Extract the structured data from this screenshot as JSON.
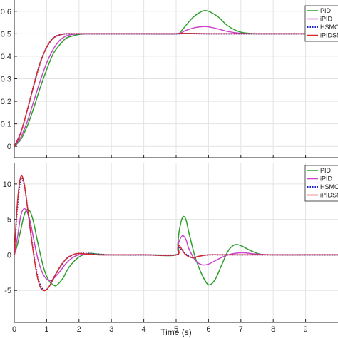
{
  "chart_data": [
    {
      "type": "line",
      "title": "",
      "xlabel": "",
      "ylabel": "",
      "xlim": [
        0,
        10
      ],
      "ylim": [
        -0.05,
        0.65
      ],
      "yticks": [
        0,
        0.1,
        0.2,
        0.3,
        0.4,
        0.5,
        0.6
      ],
      "ytick_labels": [
        "0",
        "0.1",
        "0.2",
        "0.3",
        "0.4",
        "0.5",
        "0.6"
      ],
      "xticks": [
        0,
        1,
        2,
        3,
        4,
        5,
        6,
        7,
        8,
        9
      ],
      "xtick_labels": [],
      "grid": true,
      "legend_position": "top-right",
      "series": [
        {
          "name": "PID",
          "color": "#2ca02c",
          "style": "solid",
          "x": [
            0,
            0.2,
            0.4,
            0.6,
            0.8,
            1.0,
            1.2,
            1.4,
            1.6,
            1.8,
            2.0,
            2.2,
            2.5,
            3,
            4,
            5,
            5.2,
            5.5,
            5.8,
            6.0,
            6.3,
            6.6,
            7.0,
            7.5,
            8,
            9,
            10
          ],
          "y": [
            0,
            0.03,
            0.09,
            0.17,
            0.26,
            0.34,
            0.41,
            0.45,
            0.48,
            0.49,
            0.497,
            0.5,
            0.5,
            0.5,
            0.5,
            0.5,
            0.52,
            0.57,
            0.6,
            0.6,
            0.575,
            0.535,
            0.507,
            0.5,
            0.5,
            0.5,
            0.5
          ]
        },
        {
          "name": "iPID",
          "color": "#cc44cc",
          "style": "solid",
          "x": [
            0,
            0.2,
            0.4,
            0.6,
            0.8,
            1.0,
            1.2,
            1.4,
            1.6,
            1.8,
            2.0,
            2.2,
            2.5,
            3,
            4,
            5,
            5.3,
            5.6,
            5.9,
            6.2,
            6.6,
            7.0,
            7.5,
            8,
            9,
            10
          ],
          "y": [
            0,
            0.04,
            0.11,
            0.2,
            0.29,
            0.37,
            0.43,
            0.47,
            0.49,
            0.497,
            0.5,
            0.5,
            0.5,
            0.5,
            0.5,
            0.5,
            0.515,
            0.528,
            0.532,
            0.525,
            0.51,
            0.502,
            0.5,
            0.5,
            0.5,
            0.5
          ]
        },
        {
          "name": "HSMC",
          "color": "#1f1fcc",
          "style": "dotted",
          "x": [
            0,
            0.2,
            0.4,
            0.6,
            0.8,
            1.0,
            1.2,
            1.4,
            1.6,
            1.8,
            2.0,
            2.5,
            3,
            4,
            5,
            5.2,
            5.5,
            6,
            7,
            8,
            9,
            10
          ],
          "y": [
            0,
            0.06,
            0.16,
            0.27,
            0.37,
            0.44,
            0.48,
            0.495,
            0.5,
            0.5,
            0.5,
            0.5,
            0.5,
            0.5,
            0.5,
            0.501,
            0.501,
            0.5,
            0.5,
            0.5,
            0.5,
            0.5
          ]
        },
        {
          "name": "iPIDSMC",
          "color": "#d62728",
          "style": "solid",
          "x": [
            0,
            0.2,
            0.4,
            0.6,
            0.8,
            1.0,
            1.2,
            1.4,
            1.6,
            1.8,
            2.0,
            2.5,
            3,
            4,
            5,
            5.2,
            5.5,
            6,
            7,
            8,
            9,
            10
          ],
          "y": [
            0,
            0.06,
            0.16,
            0.27,
            0.37,
            0.44,
            0.48,
            0.495,
            0.5,
            0.5,
            0.5,
            0.5,
            0.5,
            0.5,
            0.5,
            0.502,
            0.501,
            0.5,
            0.5,
            0.5,
            0.5,
            0.5
          ]
        }
      ]
    },
    {
      "type": "line",
      "title": "",
      "xlabel": "Time (s)",
      "ylabel": "",
      "xlim": [
        0,
        10
      ],
      "ylim": [
        -9.5,
        13
      ],
      "yticks": [
        -5,
        0,
        5,
        10
      ],
      "ytick_labels": [
        "-5",
        "0",
        "5",
        "10"
      ],
      "xticks": [
        0,
        1,
        2,
        3,
        4,
        5,
        6,
        7,
        8,
        9
      ],
      "xtick_labels": [
        "0",
        "1",
        "2",
        "3",
        "4",
        "5",
        "6",
        "7",
        "8",
        "9"
      ],
      "grid": true,
      "legend_position": "top-right",
      "series": [
        {
          "name": "PID",
          "color": "#2ca02c",
          "style": "solid",
          "x": [
            0,
            0.1,
            0.2,
            0.3,
            0.4,
            0.5,
            0.6,
            0.7,
            0.8,
            0.9,
            1.0,
            1.1,
            1.2,
            1.3,
            1.5,
            1.7,
            2.0,
            2.3,
            2.6,
            3,
            4,
            5,
            5.05,
            5.1,
            5.2,
            5.3,
            5.4,
            5.6,
            5.8,
            6.0,
            6.2,
            6.4,
            6.6,
            6.8,
            7.0,
            7.3,
            7.6,
            8,
            9,
            10
          ],
          "y": [
            0,
            1.5,
            3.5,
            5.5,
            6.4,
            6.0,
            4.5,
            2.3,
            0.2,
            -1.7,
            -3.0,
            -3.8,
            -4.2,
            -4.3,
            -3.3,
            -1.7,
            -0.3,
            0.2,
            0.1,
            0,
            0,
            0,
            1.5,
            3.5,
            5.3,
            5.0,
            3.0,
            -0.5,
            -2.8,
            -4.2,
            -3.5,
            -1.5,
            0.5,
            1.4,
            1.3,
            0.6,
            0.1,
            0,
            0,
            0
          ]
        },
        {
          "name": "iPID",
          "color": "#cc44cc",
          "style": "solid",
          "x": [
            0,
            0.1,
            0.2,
            0.3,
            0.4,
            0.5,
            0.6,
            0.7,
            0.8,
            0.9,
            1.0,
            1.1,
            1.2,
            1.4,
            1.6,
            1.8,
            2.0,
            2.3,
            2.6,
            3,
            4,
            5,
            5.05,
            5.1,
            5.2,
            5.3,
            5.4,
            5.6,
            5.8,
            6.0,
            6.3,
            6.6,
            7.0,
            7.5,
            8,
            9,
            10
          ],
          "y": [
            0,
            2.5,
            5.5,
            6.5,
            6.0,
            4.5,
            2.2,
            0,
            -1.7,
            -2.8,
            -3.4,
            -3.6,
            -3.4,
            -2.4,
            -1.2,
            -0.4,
            0,
            0.1,
            0,
            0,
            0,
            0,
            1.0,
            2.0,
            2.7,
            2.2,
            0.8,
            -0.8,
            -1.4,
            -1.3,
            -0.6,
            0,
            0.3,
            0.1,
            0,
            0,
            0
          ]
        },
        {
          "name": "HSMC",
          "color": "#1f1fcc",
          "style": "dotted",
          "x": [
            0,
            0.1,
            0.2,
            0.3,
            0.4,
            0.5,
            0.6,
            0.7,
            0.8,
            0.9,
            1.0,
            1.1,
            1.2,
            1.4,
            1.6,
            1.8,
            2.0,
            2.3,
            2.6,
            3,
            4,
            5,
            5.05,
            5.1,
            5.2,
            5.3,
            5.5,
            5.7,
            6.0,
            6.5,
            7,
            8,
            9,
            10
          ],
          "y": [
            0,
            7.0,
            10.6,
            10.0,
            7.0,
            3.5,
            0.3,
            -2.5,
            -4.2,
            -4.9,
            -4.8,
            -4.2,
            -3.4,
            -1.8,
            -0.6,
            0,
            0.2,
            0.2,
            0.1,
            0,
            0,
            0,
            0.7,
            1.0,
            0.6,
            0.1,
            -0.4,
            -0.2,
            0,
            0,
            0,
            0,
            0,
            0
          ]
        },
        {
          "name": "iPIDSMC",
          "color": "#d62728",
          "style": "solid",
          "x": [
            0,
            0.1,
            0.2,
            0.3,
            0.4,
            0.5,
            0.6,
            0.7,
            0.8,
            0.9,
            1.0,
            1.1,
            1.2,
            1.4,
            1.6,
            1.8,
            2.0,
            2.3,
            2.6,
            3,
            4,
            5,
            5.05,
            5.1,
            5.2,
            5.3,
            5.5,
            5.7,
            6.0,
            6.5,
            7,
            8,
            9,
            10
          ],
          "y": [
            0,
            7.5,
            11.0,
            10.2,
            7.0,
            3.3,
            0,
            -2.8,
            -4.5,
            -5.0,
            -4.9,
            -4.3,
            -3.4,
            -1.8,
            -0.6,
            0,
            0.2,
            0.1,
            0,
            0,
            0,
            0,
            0.9,
            1.3,
            0.6,
            0,
            -0.4,
            -0.2,
            0,
            0,
            0,
            0,
            0,
            0
          ]
        }
      ]
    }
  ]
}
